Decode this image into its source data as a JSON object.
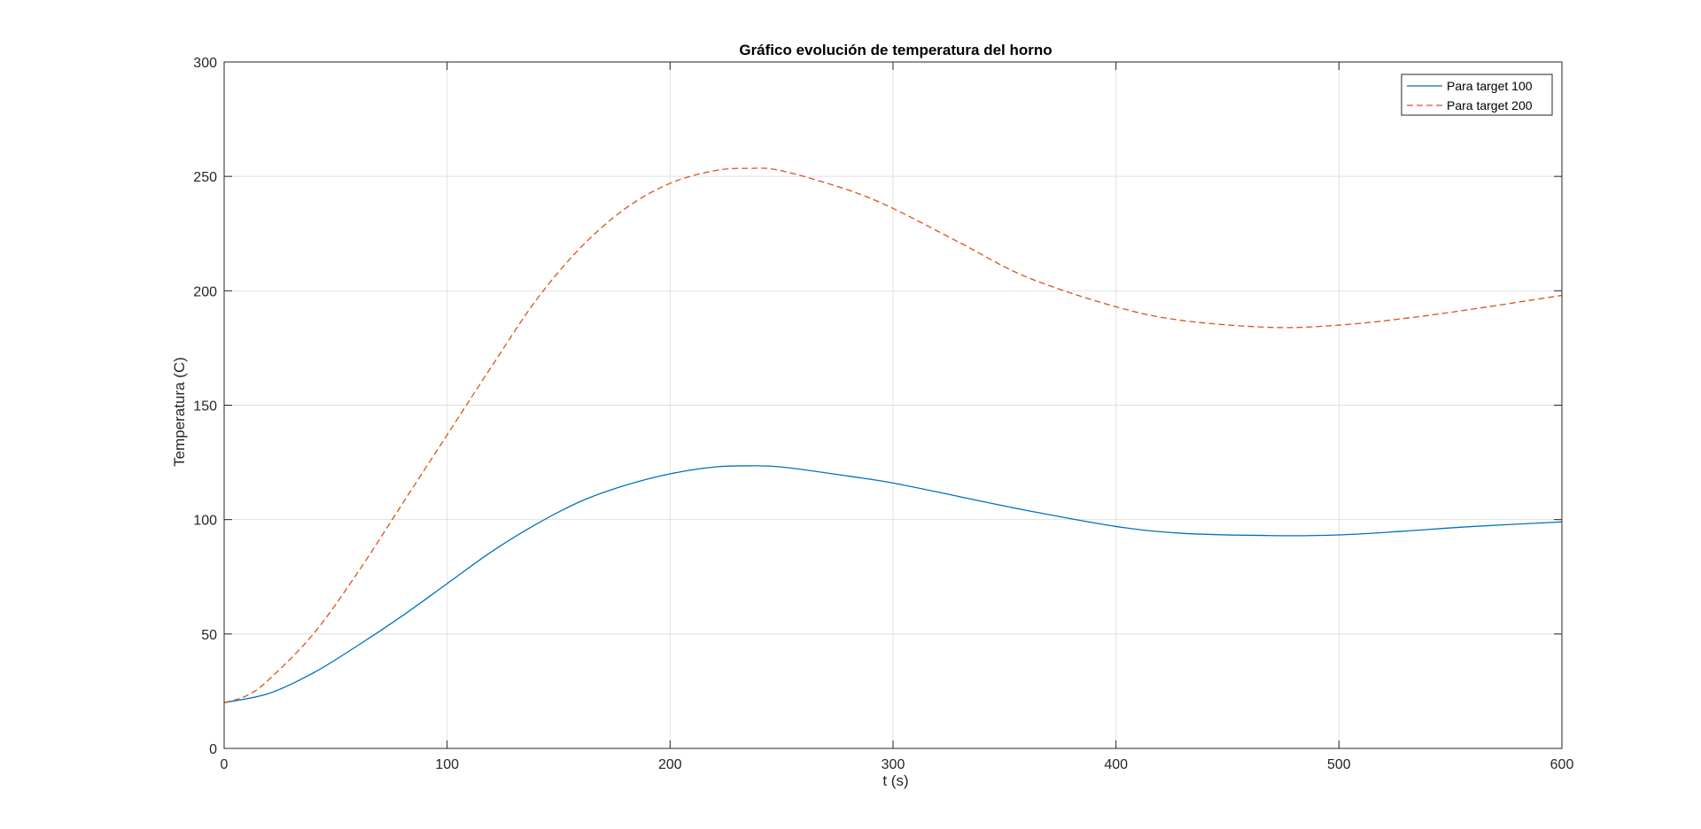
{
  "chart_data": {
    "type": "line",
    "title": "Gráfico evolución de temperatura del horno",
    "xlabel": "t (s)",
    "ylabel": "Temperatura (C)",
    "xlim": [
      0,
      600
    ],
    "ylim": [
      0,
      300
    ],
    "xticks": [
      "0",
      "100",
      "200",
      "300",
      "400",
      "500",
      "600"
    ],
    "yticks": [
      "0",
      "50",
      "100",
      "150",
      "200",
      "250",
      "300"
    ],
    "grid": true,
    "legend_position": "top-right",
    "series": [
      {
        "name": "Para target 100",
        "color": "#0072BD",
        "line_style": "solid",
        "x": [
          0,
          20,
          40,
          60,
          80,
          100,
          120,
          140,
          160,
          180,
          200,
          220,
          235,
          250,
          280,
          300,
          330,
          360,
          400,
          430,
          470,
          500,
          530,
          560,
          600
        ],
        "y": [
          20,
          24,
          33,
          45,
          58,
          72,
          86,
          98,
          108,
          115,
          120,
          123,
          123.5,
          123,
          119,
          116,
          110,
          104,
          97,
          94,
          93,
          93.3,
          95,
          97,
          99
        ]
      },
      {
        "name": "Para target 200",
        "color": "#D95319",
        "line_style": "dashed",
        "x": [
          0,
          10,
          20,
          40,
          60,
          80,
          100,
          120,
          140,
          160,
          180,
          200,
          220,
          235,
          250,
          280,
          300,
          330,
          360,
          400,
          430,
          470,
          500,
          530,
          560,
          600
        ],
        "y": [
          20,
          23,
          30,
          50,
          77,
          107,
          137,
          167,
          196,
          219,
          236,
          247,
          252.5,
          253.5,
          252.5,
          244,
          236,
          221,
          206,
          193,
          187,
          184,
          185,
          188,
          192,
          198
        ]
      }
    ]
  }
}
